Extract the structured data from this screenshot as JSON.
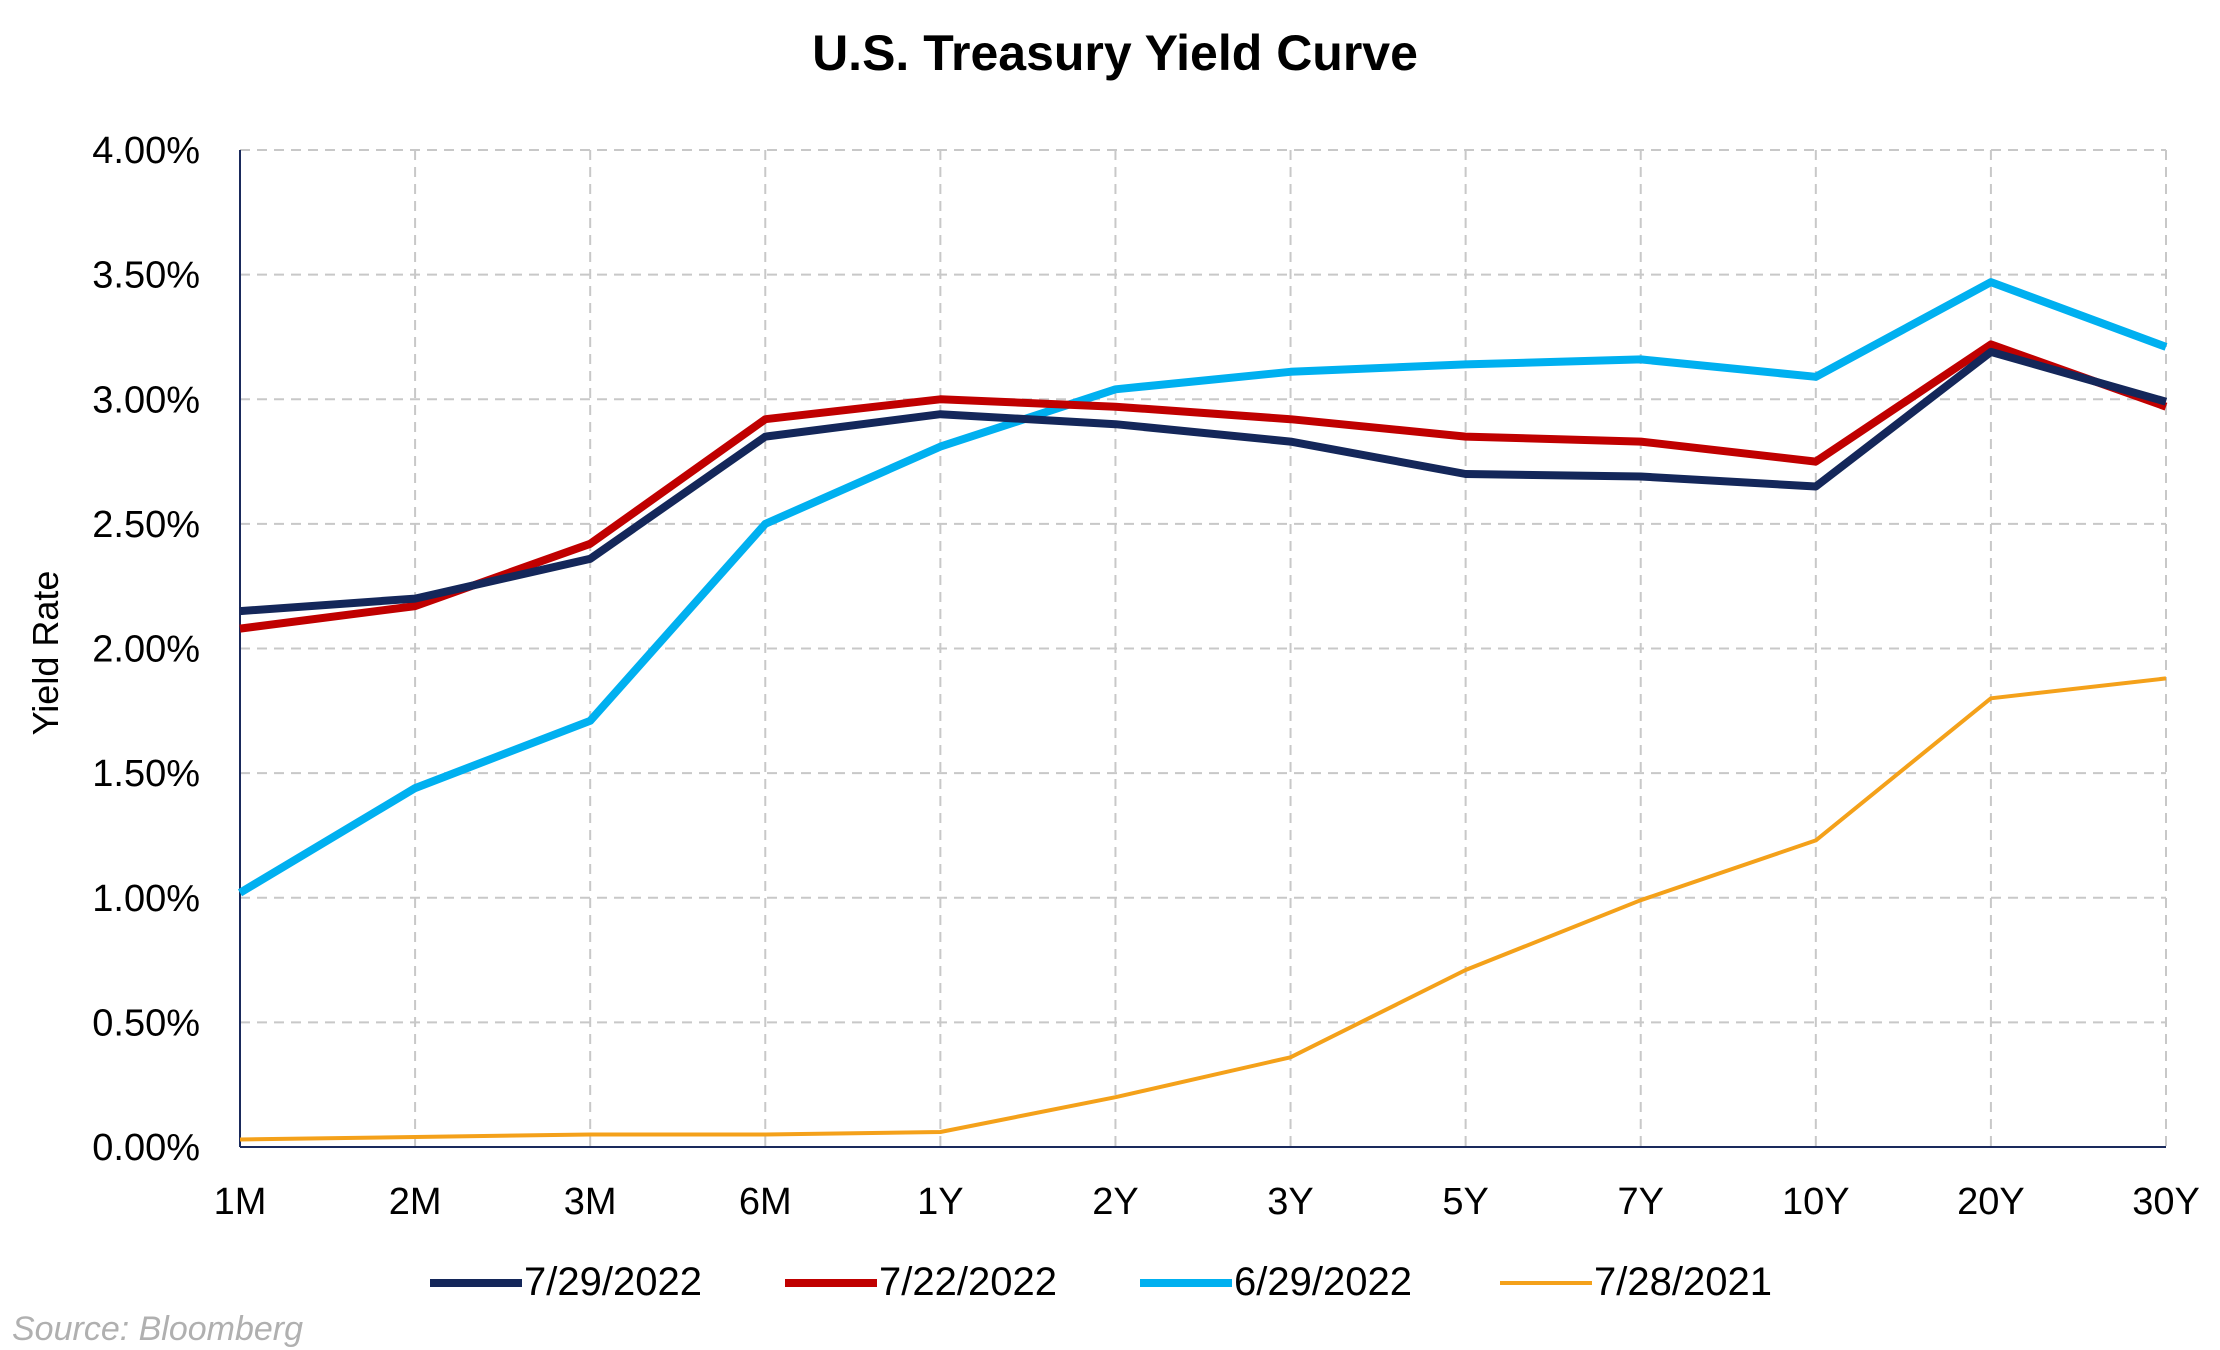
{
  "chart_data": {
    "type": "line",
    "title": "U.S. Treasury Yield Curve",
    "xlabel": "",
    "ylabel": "Yield Rate",
    "categories": [
      "1M",
      "2M",
      "3M",
      "6M",
      "1Y",
      "2Y",
      "3Y",
      "5Y",
      "7Y",
      "10Y",
      "20Y",
      "30Y"
    ],
    "ylim": [
      0,
      4
    ],
    "yticks": [
      {
        "value": 0,
        "label": "0.00%"
      },
      {
        "value": 0.5,
        "label": "0.50%"
      },
      {
        "value": 1,
        "label": "1.00%"
      },
      {
        "value": 1.5,
        "label": "1.50%"
      },
      {
        "value": 2,
        "label": "2.00%"
      },
      {
        "value": 2.5,
        "label": "2.50%"
      },
      {
        "value": 3,
        "label": "3.00%"
      },
      {
        "value": 3.5,
        "label": "3.50%"
      },
      {
        "value": 4,
        "label": "4.00%"
      }
    ],
    "grid": true,
    "legend_position": "bottom",
    "series": [
      {
        "name": "7/29/2022",
        "color": "#14275a",
        "values": [
          2.15,
          2.2,
          2.36,
          2.85,
          2.94,
          2.9,
          2.83,
          2.7,
          2.69,
          2.65,
          3.19,
          2.99
        ]
      },
      {
        "name": "7/22/2022",
        "color": "#c00000",
        "values": [
          2.08,
          2.17,
          2.42,
          2.92,
          3.0,
          2.97,
          2.92,
          2.85,
          2.83,
          2.75,
          3.22,
          2.97
        ]
      },
      {
        "name": "6/29/2022",
        "color": "#00b0f0",
        "values": [
          1.02,
          1.44,
          1.71,
          2.5,
          2.81,
          3.04,
          3.11,
          3.14,
          3.16,
          3.09,
          3.47,
          3.21
        ]
      },
      {
        "name": "7/28/2021",
        "color": "#f4a11a",
        "values": [
          0.03,
          0.04,
          0.05,
          0.05,
          0.06,
          0.2,
          0.36,
          0.71,
          0.99,
          1.23,
          1.8,
          1.88
        ]
      }
    ],
    "source": "Source: Bloomberg"
  }
}
